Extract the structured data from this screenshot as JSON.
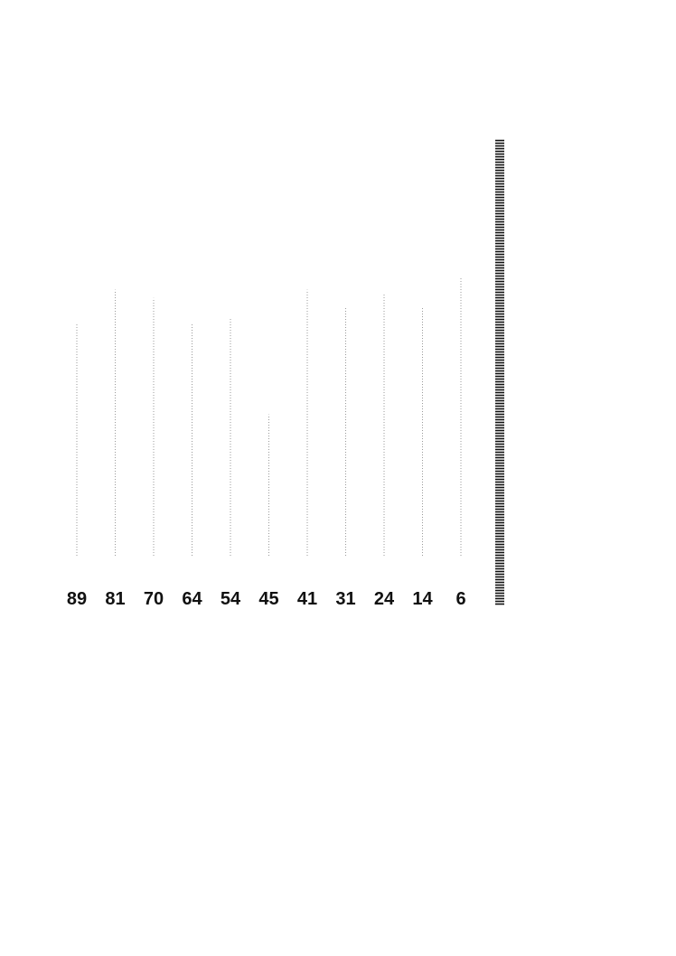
{
  "chart_data": {
    "type": "bar",
    "categories": [
      "89",
      "81",
      "70",
      "64",
      "54",
      "45",
      "41",
      "31",
      "24",
      "14",
      "6"
    ],
    "values": [
      0.56,
      0.64,
      0.62,
      0.56,
      0.57,
      0.34,
      0.64,
      0.6,
      0.63,
      0.6,
      0.67
    ],
    "ylim": [
      0,
      1
    ],
    "grid": false,
    "title": "",
    "xlabel": "",
    "ylabel": ""
  },
  "colors": {
    "bar": "#9a9a9a",
    "scale": "#111111",
    "text": "#111111"
  }
}
